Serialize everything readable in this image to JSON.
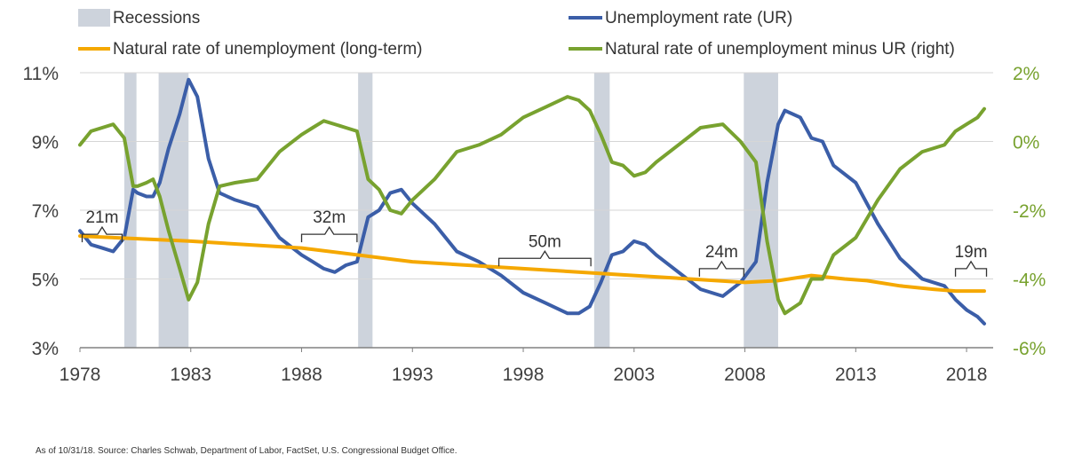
{
  "chart_data": {
    "type": "line",
    "legend": {
      "recessions": "Recessions",
      "unemployment": "Unemployment rate (UR)",
      "natural": "Natural rate of unemployment (long-term)",
      "gap": "Natural rate of unemployment minus UR (right)"
    },
    "colors": {
      "unemployment": "#3b5ea8",
      "natural": "#f5a800",
      "gap": "#78a22f",
      "recession": "#cdd3dc",
      "axis": "#808080",
      "grid": "#d6d6d6",
      "right_tick": "#78a22f"
    },
    "x_ticks": [
      "1978",
      "1983",
      "1988",
      "1993",
      "1998",
      "2003",
      "2008",
      "2013",
      "2018"
    ],
    "x_range": [
      1978,
      2019.2
    ],
    "y_left": {
      "ticks": [
        "3%",
        "5%",
        "7%",
        "9%",
        "11%"
      ],
      "range": [
        3,
        11
      ]
    },
    "y_right": {
      "ticks": [
        "-6%",
        "-4%",
        "-2%",
        "0%",
        "2%"
      ],
      "range": [
        -6,
        2
      ]
    },
    "grid": true,
    "recessions": [
      [
        1980.0,
        1980.55
      ],
      [
        1981.55,
        1982.9
      ],
      [
        1990.55,
        1991.2
      ],
      [
        2001.2,
        2001.9
      ],
      [
        2007.95,
        2009.5
      ]
    ],
    "annotations": [
      {
        "label": "21m",
        "x_start": 1978.1,
        "x_end": 1979.9,
        "y": 6.3
      },
      {
        "label": "32m",
        "x_start": 1988.0,
        "x_end": 1990.5,
        "y": 6.3
      },
      {
        "label": "50m",
        "x_start": 1996.9,
        "x_end": 2001.05,
        "y": 5.6
      },
      {
        "label": "24m",
        "x_start": 2005.95,
        "x_end": 2007.95,
        "y": 5.3
      },
      {
        "label": "19m",
        "x_start": 2017.5,
        "x_end": 2018.9,
        "y": 5.3
      }
    ],
    "series": [
      {
        "name": "Unemployment rate (UR)",
        "axis": "left",
        "x": [
          1978.0,
          1978.5,
          1979.0,
          1979.5,
          1980.0,
          1980.4,
          1980.6,
          1981.0,
          1981.3,
          1981.6,
          1982.0,
          1982.5,
          1982.9,
          1983.3,
          1983.8,
          1984.3,
          1985.0,
          1986.0,
          1987.0,
          1988.0,
          1988.5,
          1989.0,
          1989.5,
          1990.0,
          1990.5,
          1991.0,
          1991.5,
          1992.0,
          1992.5,
          1993.0,
          1994.0,
          1995.0,
          1996.0,
          1997.0,
          1998.0,
          1999.0,
          2000.0,
          2000.5,
          2001.0,
          2001.5,
          2002.0,
          2002.5,
          2003.0,
          2003.5,
          2004.0,
          2005.0,
          2006.0,
          2007.0,
          2007.8,
          2008.5,
          2009.0,
          2009.5,
          2009.8,
          2010.5,
          2011.0,
          2011.5,
          2012.0,
          2013.0,
          2014.0,
          2015.0,
          2016.0,
          2017.0,
          2017.5,
          2018.0,
          2018.5,
          2018.8
        ],
        "values": [
          6.4,
          6.0,
          5.9,
          5.8,
          6.2,
          7.6,
          7.5,
          7.4,
          7.4,
          7.8,
          8.8,
          9.8,
          10.8,
          10.3,
          8.5,
          7.5,
          7.3,
          7.1,
          6.2,
          5.7,
          5.5,
          5.3,
          5.2,
          5.4,
          5.5,
          6.8,
          7.0,
          7.5,
          7.6,
          7.2,
          6.6,
          5.8,
          5.5,
          5.1,
          4.6,
          4.3,
          4.0,
          4.0,
          4.2,
          4.9,
          5.7,
          5.8,
          6.1,
          6.0,
          5.7,
          5.2,
          4.7,
          4.5,
          4.9,
          5.5,
          7.8,
          9.5,
          9.9,
          9.7,
          9.1,
          9.0,
          8.3,
          7.8,
          6.6,
          5.6,
          5.0,
          4.8,
          4.4,
          4.1,
          3.9,
          3.7
        ]
      },
      {
        "name": "Natural rate of unemployment (long-term)",
        "axis": "left",
        "x": [
          1978.0,
          1983.0,
          1988.0,
          1993.0,
          1998.0,
          2003.0,
          2008.0,
          2009.5,
          2011.0,
          2012.5,
          2013.5,
          2015.0,
          2016.5,
          2017.5,
          2018.8
        ],
        "values": [
          6.25,
          6.1,
          5.9,
          5.5,
          5.3,
          5.1,
          4.9,
          4.95,
          5.1,
          5.0,
          4.95,
          4.8,
          4.7,
          4.65,
          4.65
        ]
      },
      {
        "name": "Natural rate of unemployment minus UR (right)",
        "axis": "right",
        "x": [
          1978.0,
          1978.5,
          1979.0,
          1979.5,
          1980.0,
          1980.4,
          1980.6,
          1981.0,
          1981.3,
          1981.6,
          1982.0,
          1982.5,
          1982.9,
          1983.3,
          1983.8,
          1984.3,
          1985.0,
          1986.0,
          1987.0,
          1988.0,
          1988.5,
          1989.0,
          1989.5,
          1990.0,
          1990.5,
          1991.0,
          1991.5,
          1992.0,
          1992.5,
          1993.0,
          1994.0,
          1995.0,
          1996.0,
          1997.0,
          1998.0,
          1999.0,
          2000.0,
          2000.5,
          2001.0,
          2001.5,
          2002.0,
          2002.5,
          2003.0,
          2003.5,
          2004.0,
          2005.0,
          2006.0,
          2007.0,
          2007.8,
          2008.5,
          2009.0,
          2009.5,
          2009.8,
          2010.5,
          2011.0,
          2011.5,
          2012.0,
          2013.0,
          2014.0,
          2015.0,
          2016.0,
          2017.0,
          2017.5,
          2018.0,
          2018.5,
          2018.8
        ],
        "values": [
          -0.1,
          0.3,
          0.4,
          0.5,
          0.1,
          -1.3,
          -1.3,
          -1.2,
          -1.1,
          -1.6,
          -2.6,
          -3.7,
          -4.6,
          -4.1,
          -2.4,
          -1.3,
          -1.2,
          -1.1,
          -0.3,
          0.2,
          0.4,
          0.6,
          0.5,
          0.4,
          0.3,
          -1.1,
          -1.4,
          -2.0,
          -2.1,
          -1.7,
          -1.1,
          -0.3,
          -0.1,
          0.2,
          0.7,
          1.0,
          1.3,
          1.2,
          0.9,
          0.2,
          -0.6,
          -0.7,
          -1.0,
          -0.9,
          -0.6,
          -0.1,
          0.4,
          0.5,
          0.0,
          -0.6,
          -2.9,
          -4.6,
          -5.0,
          -4.7,
          -4.0,
          -4.0,
          -3.3,
          -2.8,
          -1.7,
          -0.8,
          -0.3,
          -0.1,
          0.3,
          0.5,
          0.7,
          0.95
        ]
      }
    ]
  },
  "footer": {
    "source": "As of 10/31/18. Source:  Charles Schwab, Department of Labor, FactSet, U.S. Congressional Budget Office."
  }
}
